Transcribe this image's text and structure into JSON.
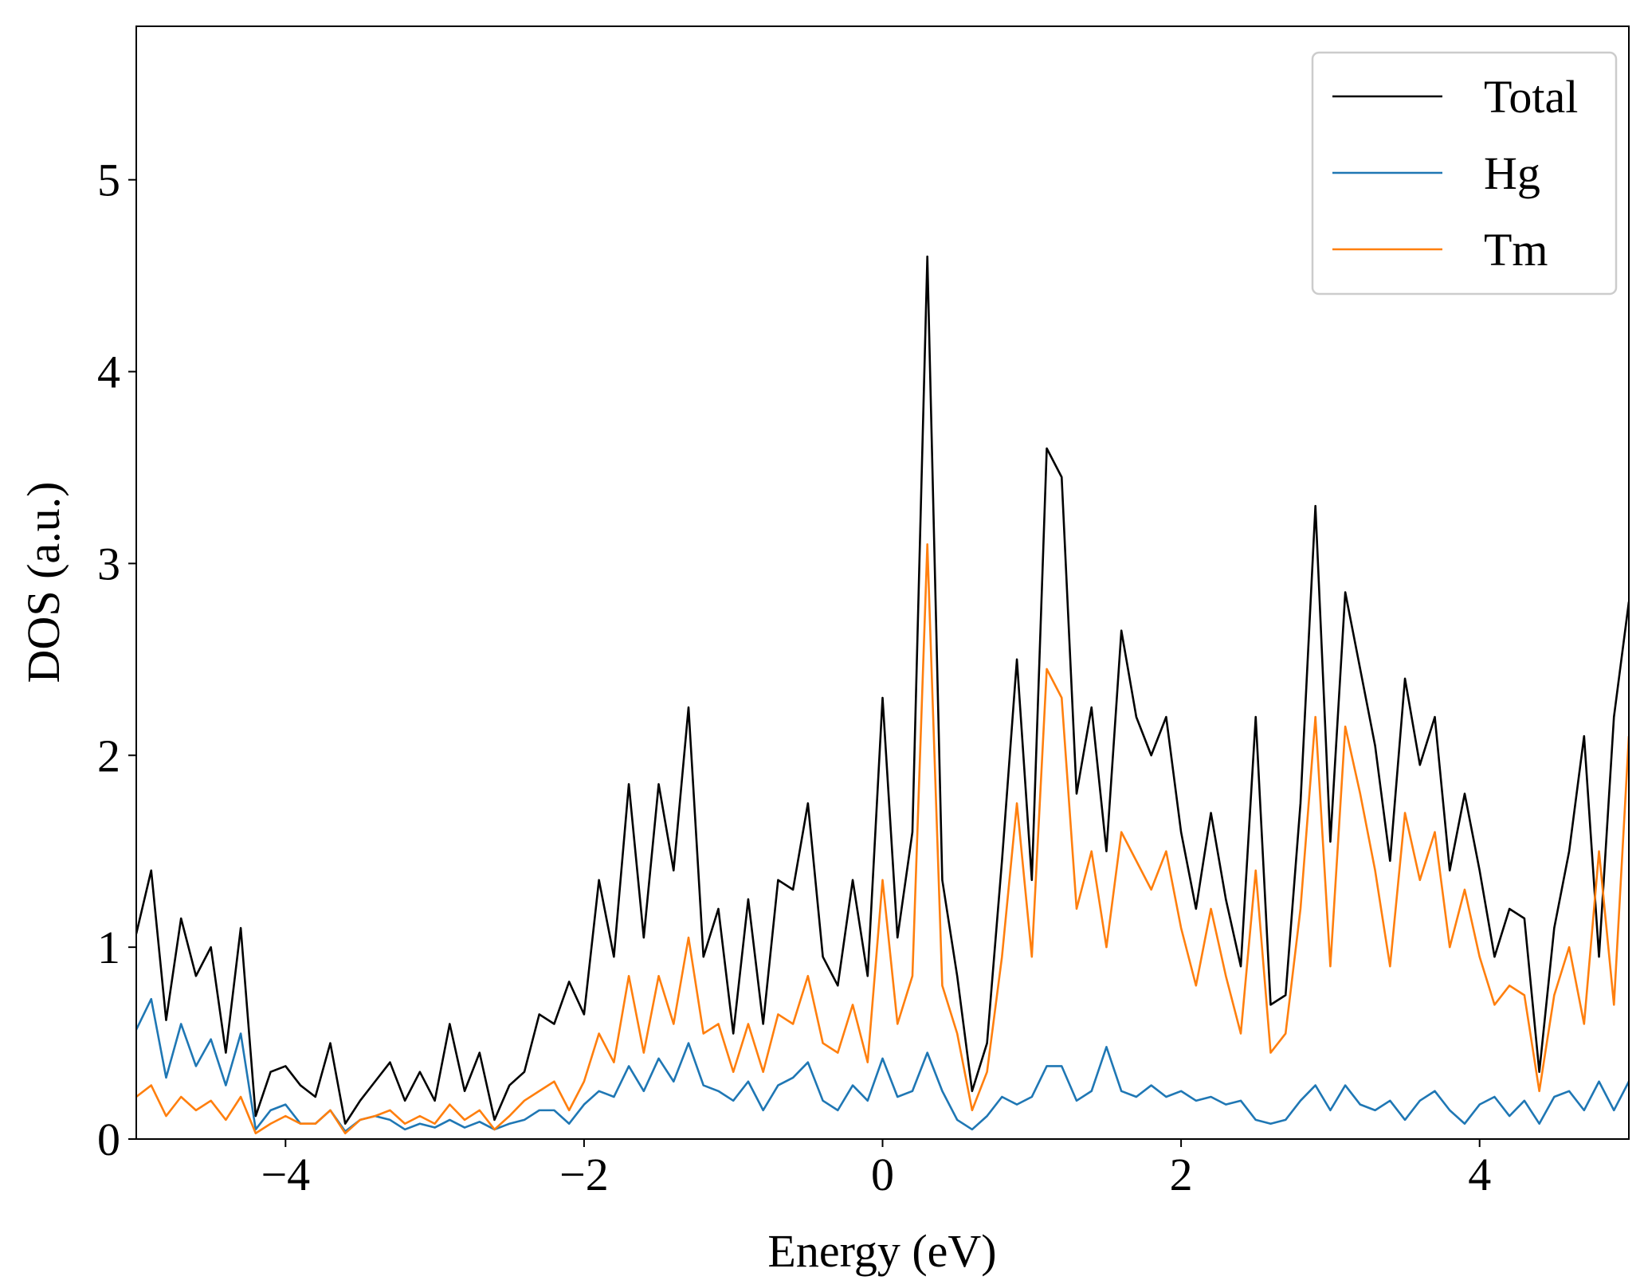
{
  "chart_data": {
    "type": "line",
    "xlabel": "Energy (eV)",
    "ylabel": "DOS (a.u.)",
    "xlim": [
      -5,
      5
    ],
    "ylim": [
      0,
      5.8
    ],
    "xticks": [
      {
        "value": -4,
        "label": "−4"
      },
      {
        "value": -2,
        "label": "−2"
      },
      0,
      2,
      4
    ],
    "yticks": [
      0,
      1,
      2,
      3,
      4,
      5
    ],
    "legend": "upper right",
    "x": [
      -5.0,
      -4.9,
      -4.8,
      -4.7,
      -4.6,
      -4.5,
      -4.4,
      -4.3,
      -4.2,
      -4.1,
      -4.0,
      -3.9,
      -3.8,
      -3.7,
      -3.6,
      -3.5,
      -3.4,
      -3.3,
      -3.2,
      -3.1,
      -3.0,
      -2.9,
      -2.8,
      -2.7,
      -2.6,
      -2.5,
      -2.4,
      -2.3,
      -2.2,
      -2.1,
      -2.0,
      -1.9,
      -1.8,
      -1.7,
      -1.6,
      -1.5,
      -1.4,
      -1.3,
      -1.2,
      -1.1,
      -1.0,
      -0.9,
      -0.8,
      -0.7,
      -0.6,
      -0.5,
      -0.4,
      -0.3,
      -0.2,
      -0.1,
      0.0,
      0.1,
      0.2,
      0.3,
      0.4,
      0.5,
      0.6,
      0.7,
      0.8,
      0.9,
      1.0,
      1.1,
      1.2,
      1.3,
      1.4,
      1.5,
      1.6,
      1.7,
      1.8,
      1.9,
      2.0,
      2.1,
      2.2,
      2.3,
      2.4,
      2.5,
      2.6,
      2.7,
      2.8,
      2.9,
      3.0,
      3.1,
      3.2,
      3.3,
      3.4,
      3.5,
      3.6,
      3.7,
      3.8,
      3.9,
      4.0,
      4.1,
      4.2,
      4.3,
      4.4,
      4.5,
      4.6,
      4.7,
      4.8,
      4.9,
      5.0
    ],
    "series": [
      {
        "name": "Total",
        "color": "#000000",
        "values": [
          1.07,
          1.4,
          0.62,
          1.15,
          0.85,
          1.0,
          0.45,
          1.1,
          0.12,
          0.35,
          0.38,
          0.28,
          0.22,
          0.5,
          0.08,
          0.2,
          0.3,
          0.4,
          0.2,
          0.35,
          0.2,
          0.6,
          0.25,
          0.45,
          0.1,
          0.28,
          0.35,
          0.65,
          0.6,
          0.82,
          0.65,
          1.35,
          0.95,
          1.85,
          1.05,
          1.85,
          1.4,
          2.25,
          0.95,
          1.2,
          0.55,
          1.25,
          0.6,
          1.35,
          1.3,
          1.75,
          0.95,
          0.8,
          1.35,
          0.85,
          2.3,
          1.05,
          1.6,
          4.6,
          1.35,
          0.85,
          0.25,
          0.5,
          1.45,
          2.5,
          1.35,
          3.6,
          3.45,
          1.8,
          2.25,
          1.5,
          2.65,
          2.2,
          2.0,
          2.2,
          1.6,
          1.2,
          1.7,
          1.25,
          0.9,
          2.2,
          0.7,
          0.75,
          1.75,
          3.3,
          1.55,
          2.85,
          2.45,
          2.05,
          1.45,
          2.4,
          1.95,
          2.2,
          1.4,
          1.8,
          1.4,
          0.95,
          1.2,
          1.15,
          0.35,
          1.1,
          1.5,
          2.1,
          0.95,
          2.2,
          2.8
        ]
      },
      {
        "name": "Hg",
        "color": "#1f77b4",
        "values": [
          0.57,
          0.73,
          0.32,
          0.6,
          0.38,
          0.52,
          0.28,
          0.55,
          0.05,
          0.15,
          0.18,
          0.08,
          0.08,
          0.15,
          0.04,
          0.1,
          0.12,
          0.1,
          0.05,
          0.08,
          0.06,
          0.1,
          0.06,
          0.09,
          0.05,
          0.08,
          0.1,
          0.15,
          0.15,
          0.08,
          0.18,
          0.25,
          0.22,
          0.38,
          0.25,
          0.42,
          0.3,
          0.5,
          0.28,
          0.25,
          0.2,
          0.3,
          0.15,
          0.28,
          0.32,
          0.4,
          0.2,
          0.15,
          0.28,
          0.2,
          0.42,
          0.22,
          0.25,
          0.45,
          0.25,
          0.1,
          0.05,
          0.12,
          0.22,
          0.18,
          0.22,
          0.38,
          0.38,
          0.2,
          0.25,
          0.48,
          0.25,
          0.22,
          0.28,
          0.22,
          0.25,
          0.2,
          0.22,
          0.18,
          0.2,
          0.1,
          0.08,
          0.1,
          0.2,
          0.28,
          0.15,
          0.28,
          0.18,
          0.15,
          0.2,
          0.1,
          0.2,
          0.25,
          0.15,
          0.08,
          0.18,
          0.22,
          0.12,
          0.2,
          0.08,
          0.22,
          0.25,
          0.15,
          0.3,
          0.15,
          0.3
        ]
      },
      {
        "name": "Tm",
        "color": "#ff7f0e",
        "values": [
          0.22,
          0.28,
          0.12,
          0.22,
          0.15,
          0.2,
          0.1,
          0.22,
          0.03,
          0.08,
          0.12,
          0.08,
          0.08,
          0.15,
          0.03,
          0.1,
          0.12,
          0.15,
          0.08,
          0.12,
          0.08,
          0.18,
          0.1,
          0.15,
          0.05,
          0.12,
          0.2,
          0.25,
          0.3,
          0.15,
          0.3,
          0.55,
          0.4,
          0.85,
          0.45,
          0.85,
          0.6,
          1.05,
          0.55,
          0.6,
          0.35,
          0.6,
          0.35,
          0.65,
          0.6,
          0.85,
          0.5,
          0.45,
          0.7,
          0.4,
          1.35,
          0.6,
          0.85,
          3.1,
          0.8,
          0.55,
          0.15,
          0.35,
          0.95,
          1.75,
          0.95,
          2.45,
          2.3,
          1.2,
          1.5,
          1.0,
          1.6,
          1.45,
          1.3,
          1.5,
          1.1,
          0.8,
          1.2,
          0.85,
          0.55,
          1.4,
          0.45,
          0.55,
          1.2,
          2.2,
          0.9,
          2.15,
          1.8,
          1.4,
          0.9,
          1.7,
          1.35,
          1.6,
          1.0,
          1.3,
          0.95,
          0.7,
          0.8,
          0.75,
          0.25,
          0.75,
          1.0,
          0.6,
          1.5,
          0.7,
          2.1
        ]
      }
    ]
  }
}
